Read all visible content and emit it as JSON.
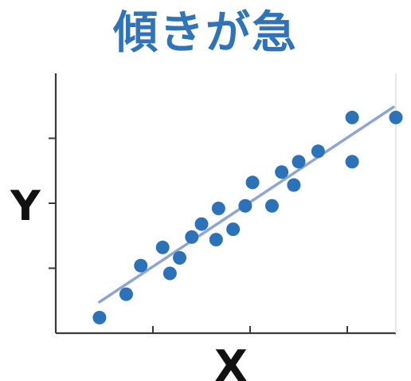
{
  "chart_data": {
    "type": "scatter",
    "title": "傾きが急",
    "xlabel": "X",
    "ylabel": "Y",
    "xlim": [
      0,
      14
    ],
    "ylim": [
      0,
      10
    ],
    "grid": false,
    "x_ticks": [
      4,
      8,
      12
    ],
    "y_ticks": [
      2.5,
      5,
      7.5
    ],
    "point_color": "#2b72b8",
    "trend_color": "#8ea6d0",
    "points": [
      {
        "x": 1.8,
        "y": 0.6
      },
      {
        "x": 2.9,
        "y": 1.5
      },
      {
        "x": 3.5,
        "y": 2.6
      },
      {
        "x": 4.4,
        "y": 3.3
      },
      {
        "x": 4.7,
        "y": 2.3
      },
      {
        "x": 5.1,
        "y": 2.9
      },
      {
        "x": 5.6,
        "y": 3.7
      },
      {
        "x": 6.0,
        "y": 4.2
      },
      {
        "x": 6.6,
        "y": 3.6
      },
      {
        "x": 6.7,
        "y": 4.8
      },
      {
        "x": 7.3,
        "y": 4.0
      },
      {
        "x": 7.8,
        "y": 4.9
      },
      {
        "x": 8.1,
        "y": 5.8
      },
      {
        "x": 8.9,
        "y": 4.9
      },
      {
        "x": 9.3,
        "y": 6.2
      },
      {
        "x": 9.8,
        "y": 5.7
      },
      {
        "x": 10.0,
        "y": 6.6
      },
      {
        "x": 10.8,
        "y": 7.0
      },
      {
        "x": 12.2,
        "y": 6.6
      },
      {
        "x": 12.2,
        "y": 8.3
      },
      {
        "x": 14.0,
        "y": 8.3
      }
    ],
    "trendline": {
      "x": [
        1.8,
        13.9
      ],
      "y": [
        1.2,
        8.7
      ]
    }
  }
}
